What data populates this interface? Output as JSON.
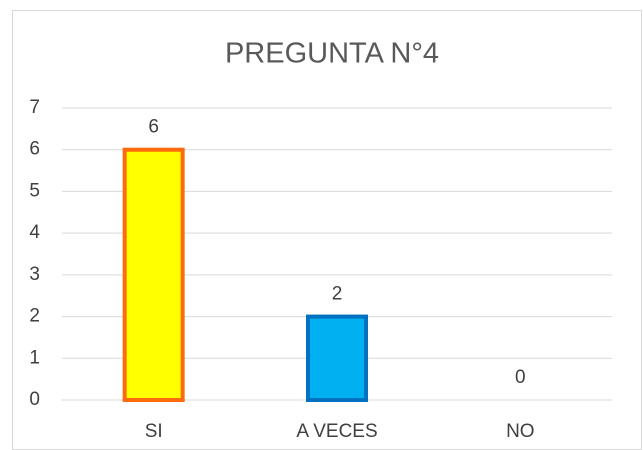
{
  "chart_data": {
    "type": "bar",
    "title": "PREGUNTA N°4",
    "categories": [
      "SI",
      "A VECES",
      "NO"
    ],
    "values": [
      6,
      2,
      0
    ],
    "colors": [
      "#ffff00",
      "#00b0f0",
      "#a5a5a5"
    ],
    "edge_colors": [
      "#ff6a0d",
      "#0070c0",
      "#7f7f7f"
    ],
    "ylim": [
      0,
      7
    ],
    "yticks": [
      0,
      1,
      2,
      3,
      4,
      5,
      6,
      7
    ],
    "grid": true
  }
}
